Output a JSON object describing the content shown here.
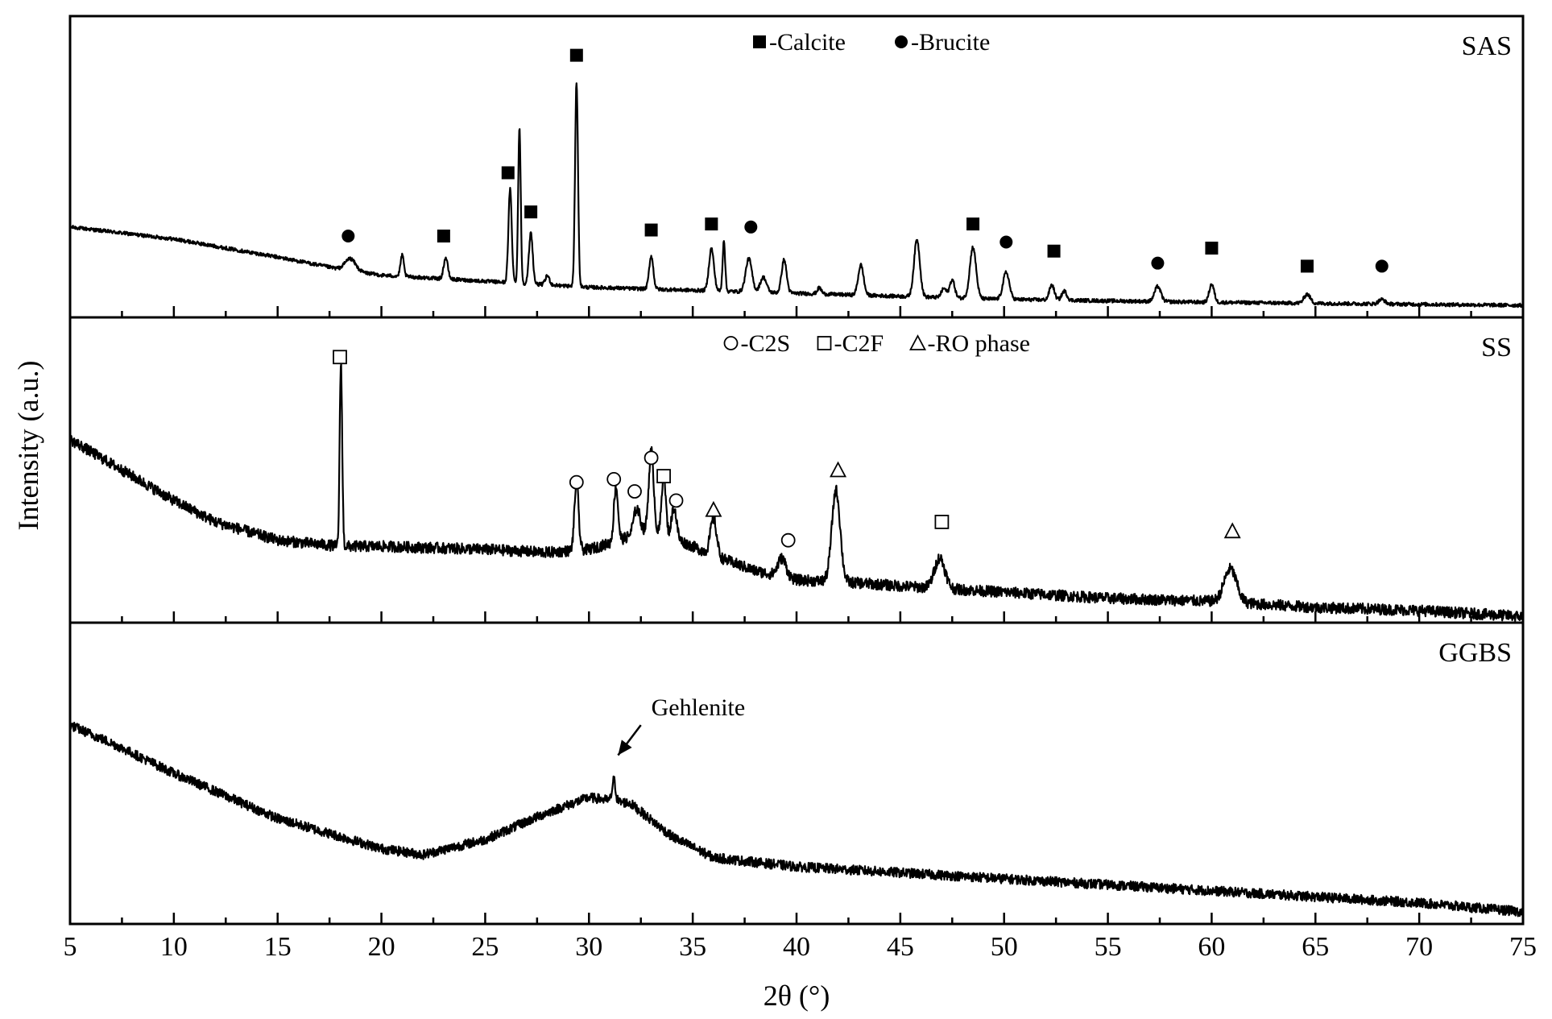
{
  "chart_data": {
    "type": "line",
    "xlabel": "2θ (°)",
    "ylabel": "Intensity (a.u.)",
    "xlim": [
      5,
      75
    ],
    "x_ticks": [
      5,
      10,
      15,
      20,
      25,
      30,
      35,
      40,
      45,
      50,
      55,
      60,
      65,
      70,
      75
    ],
    "minor_tick_step": 2.5,
    "grid": false,
    "panels": [
      {
        "name": "SAS",
        "legend": [
          {
            "symbol": "filled-square",
            "label": "-Calcite"
          },
          {
            "symbol": "filled-circle",
            "label": "-Brucite"
          }
        ],
        "ylim": [
          0,
          100
        ],
        "baseline": [
          [
            5,
            30
          ],
          [
            10,
            26
          ],
          [
            15,
            20
          ],
          [
            18,
            16
          ],
          [
            20,
            14
          ],
          [
            25,
            12
          ],
          [
            30,
            10
          ],
          [
            40,
            8
          ],
          [
            50,
            6
          ],
          [
            60,
            5
          ],
          [
            75,
            4
          ]
        ],
        "peaks": [
          [
            18.5,
            4,
            0.25
          ],
          [
            21.0,
            7,
            0.08
          ],
          [
            23.1,
            7,
            0.1
          ],
          [
            26.2,
            31,
            0.08
          ],
          [
            26.65,
            52,
            0.06
          ],
          [
            27.2,
            17,
            0.09
          ],
          [
            28.0,
            3,
            0.1
          ],
          [
            29.4,
            68,
            0.07
          ],
          [
            33.0,
            11,
            0.1
          ],
          [
            35.9,
            14,
            0.12
          ],
          [
            36.5,
            17,
            0.06
          ],
          [
            37.7,
            11,
            0.15
          ],
          [
            38.4,
            5,
            0.15
          ],
          [
            39.4,
            11,
            0.12
          ],
          [
            41.1,
            2,
            0.1
          ],
          [
            43.1,
            10,
            0.13
          ],
          [
            45.8,
            19,
            0.14
          ],
          [
            47.1,
            3,
            0.12
          ],
          [
            47.5,
            6,
            0.12
          ],
          [
            48.5,
            17,
            0.15
          ],
          [
            50.1,
            9,
            0.15
          ],
          [
            52.3,
            5,
            0.12
          ],
          [
            52.9,
            3,
            0.12
          ],
          [
            57.4,
            5,
            0.15
          ],
          [
            60.0,
            6,
            0.12
          ],
          [
            64.6,
            3,
            0.15
          ],
          [
            68.2,
            1.5,
            0.15
          ]
        ],
        "markers": [
          {
            "symbol": "filled-circle",
            "x": 18.4,
            "y": 27
          },
          {
            "symbol": "filled-square",
            "x": 23.0,
            "y": 27
          },
          {
            "symbol": "filled-square",
            "x": 26.1,
            "y": 48
          },
          {
            "symbol": "filled-square",
            "x": 27.2,
            "y": 35
          },
          {
            "symbol": "filled-square",
            "x": 29.4,
            "y": 87
          },
          {
            "symbol": "filled-square",
            "x": 33.0,
            "y": 29
          },
          {
            "symbol": "filled-square",
            "x": 35.9,
            "y": 31
          },
          {
            "symbol": "filled-circle",
            "x": 37.8,
            "y": 30
          },
          {
            "symbol": "filled-square",
            "x": 48.5,
            "y": 31
          },
          {
            "symbol": "filled-circle",
            "x": 50.1,
            "y": 25
          },
          {
            "symbol": "filled-square",
            "x": 52.4,
            "y": 22
          },
          {
            "symbol": "filled-circle",
            "x": 57.4,
            "y": 18
          },
          {
            "symbol": "filled-square",
            "x": 60.0,
            "y": 23
          },
          {
            "symbol": "filled-square",
            "x": 64.6,
            "y": 17
          },
          {
            "symbol": "filled-circle",
            "x": 68.2,
            "y": 17
          }
        ]
      },
      {
        "name": "SS",
        "legend": [
          {
            "symbol": "open-circle",
            "label": "-C2S"
          },
          {
            "symbol": "open-square",
            "label": "-C2F"
          },
          {
            "symbol": "open-triangle",
            "label": "-RO phase"
          }
        ],
        "ylim": [
          0,
          100
        ],
        "baseline": [
          [
            5,
            60
          ],
          [
            7,
            52
          ],
          [
            10,
            40
          ],
          [
            12,
            33
          ],
          [
            15,
            27
          ],
          [
            18,
            25
          ],
          [
            20,
            25
          ],
          [
            25,
            24
          ],
          [
            28,
            23
          ],
          [
            30,
            24
          ],
          [
            31.5,
            27
          ],
          [
            32.5,
            30
          ],
          [
            34,
            28
          ],
          [
            36,
            22
          ],
          [
            38,
            17
          ],
          [
            40,
            14
          ],
          [
            43,
            13
          ],
          [
            45,
            12
          ],
          [
            50,
            10
          ],
          [
            55,
            8
          ],
          [
            60,
            7
          ],
          [
            65,
            5
          ],
          [
            70,
            4
          ],
          [
            75,
            2
          ]
        ],
        "peaks": [
          [
            18.05,
            60,
            0.06
          ],
          [
            29.4,
            22,
            0.1
          ],
          [
            31.3,
            18,
            0.1
          ],
          [
            32.3,
            8,
            0.15
          ],
          [
            33.0,
            27,
            0.12
          ],
          [
            33.6,
            20,
            0.1
          ],
          [
            34.1,
            10,
            0.12
          ],
          [
            36.0,
            12,
            0.15
          ],
          [
            39.3,
            6,
            0.2
          ],
          [
            41.9,
            30,
            0.2
          ],
          [
            46.9,
            10,
            0.25
          ],
          [
            60.9,
            11,
            0.3
          ]
        ],
        "markers": [
          {
            "symbol": "open-square",
            "x": 18.0,
            "y": 87
          },
          {
            "symbol": "open-circle",
            "x": 29.4,
            "y": 46
          },
          {
            "symbol": "open-circle",
            "x": 31.2,
            "y": 47
          },
          {
            "symbol": "open-circle",
            "x": 32.2,
            "y": 43
          },
          {
            "symbol": "open-circle",
            "x": 33.0,
            "y": 54
          },
          {
            "symbol": "open-square",
            "x": 33.6,
            "y": 48
          },
          {
            "symbol": "open-circle",
            "x": 34.2,
            "y": 40
          },
          {
            "symbol": "open-triangle",
            "x": 36.0,
            "y": 37
          },
          {
            "symbol": "open-circle",
            "x": 39.6,
            "y": 27
          },
          {
            "symbol": "open-triangle",
            "x": 42.0,
            "y": 50
          },
          {
            "symbol": "open-square",
            "x": 47.0,
            "y": 33
          },
          {
            "symbol": "open-triangle",
            "x": 61.0,
            "y": 30
          }
        ]
      },
      {
        "name": "GGBS",
        "ylim": [
          0,
          100
        ],
        "baseline": [
          [
            5,
            66
          ],
          [
            7,
            60
          ],
          [
            10,
            50
          ],
          [
            15,
            35
          ],
          [
            20,
            25
          ],
          [
            22,
            23
          ],
          [
            25,
            28
          ],
          [
            28,
            37
          ],
          [
            30,
            42
          ],
          [
            32,
            40
          ],
          [
            34,
            29
          ],
          [
            36,
            22
          ],
          [
            40,
            19
          ],
          [
            50,
            15
          ],
          [
            60,
            11
          ],
          [
            70,
            7
          ],
          [
            75,
            4
          ]
        ],
        "peaks": [
          [
            31.2,
            7,
            0.08
          ]
        ],
        "annotations": [
          {
            "text": "Gehlenite",
            "arrow_from": [
              32.5,
              66
            ],
            "arrow_to": [
              31.4,
              56
            ],
            "text_at": [
              33.0,
              66
            ]
          }
        ]
      }
    ]
  }
}
